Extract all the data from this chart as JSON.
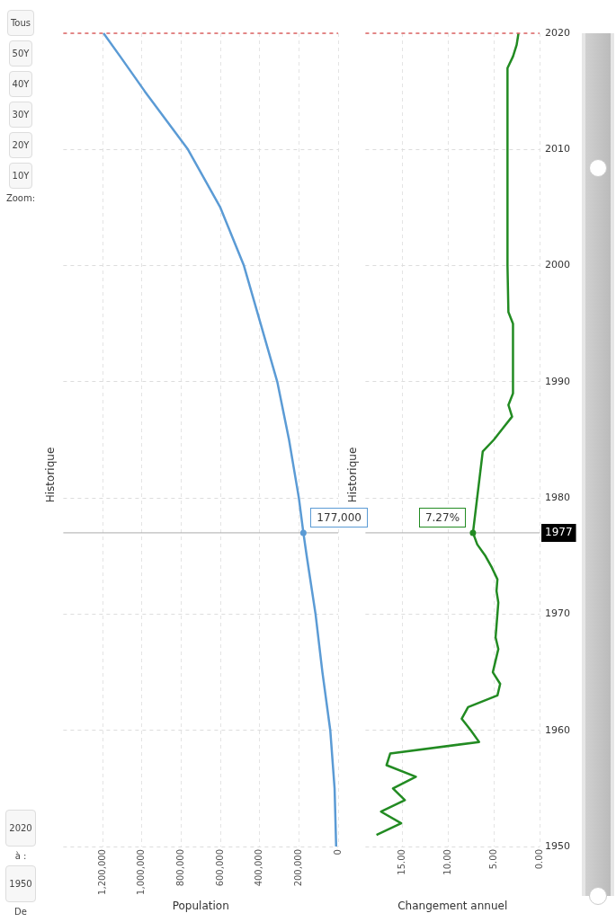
{
  "chart_data": [
    {
      "type": "line",
      "orientation": "horizontal",
      "title": "Historique",
      "xlabel": "Population",
      "x": [
        1950,
        1955,
        1960,
        1965,
        1970,
        1975,
        1977,
        1980,
        1983,
        1985,
        1990,
        1995,
        2000,
        2005,
        2010,
        2015,
        2018,
        2020
      ],
      "values": [
        10000,
        18000,
        40000,
        80000,
        115000,
        160000,
        177000,
        200000,
        230000,
        250000,
        310000,
        395000,
        480000,
        600000,
        765000,
        985000,
        1110000,
        1195000
      ],
      "color": "#5b9bd5",
      "ylim": [
        1950,
        2020
      ],
      "yticks": [
        1950,
        1960,
        1970,
        1980,
        1990,
        2000,
        2010,
        2020
      ],
      "xlim": [
        1400000,
        0
      ],
      "xticks": [
        0,
        {
          "value": 200000,
          "label": "200,000"
        },
        {
          "value": 400000,
          "label": "400,000"
        },
        {
          "value": 600000,
          "label": "600,000"
        },
        {
          "value": 800000,
          "label": "800,000"
        },
        {
          "value": 1000000,
          "label": "1,000,000"
        },
        {
          "value": 1200000,
          "label": "1,200,000"
        }
      ],
      "grid": true,
      "tick_labels": "x",
      "ref_lines": [
        {
          "axis": "y",
          "value": 1977,
          "color": "#aaaaaa"
        },
        {
          "axis": "y",
          "value": 2020,
          "color": "#e06666",
          "line_style": "dashed"
        }
      ],
      "annotations": [
        "De",
        "1950",
        "à :",
        "2020",
        "Zoom:",
        "10Y",
        "20Y",
        "30Y",
        "40Y",
        "50Y",
        "Tous",
        {
          "text": "177,000",
          "x": 177000,
          "y": 1977
        }
      ]
    },
    {
      "type": "line",
      "orientation": "horizontal",
      "title": "Historique",
      "xlabel": "Changement annuel",
      "x": [
        1951,
        1952,
        1953,
        1954,
        1955,
        1956,
        1957,
        1958,
        1959,
        1960,
        1961,
        1962,
        1963,
        1964,
        1965,
        1966,
        1967,
        1968,
        1969,
        1970,
        1971,
        1972,
        1973,
        1974,
        1975,
        1976,
        1977,
        1984,
        1985,
        1986,
        1987,
        1988,
        1989,
        1990,
        1995,
        1996,
        2000,
        2005,
        2010,
        2015,
        2017,
        2018,
        2019,
        2020
      ],
      "values": [
        17.8,
        15.1,
        17.3,
        14.7,
        16.0,
        13.5,
        16.7,
        16.3,
        6.6,
        7.5,
        8.5,
        7.8,
        4.6,
        4.3,
        5.1,
        4.8,
        4.5,
        4.8,
        4.7,
        4.6,
        4.5,
        4.7,
        4.6,
        5.2,
        5.9,
        6.8,
        7.27,
        6.2,
        5.0,
        4.0,
        3.0,
        3.4,
        2.9,
        2.9,
        2.9,
        3.4,
        3.5,
        3.5,
        3.5,
        3.5,
        3.5,
        2.9,
        2.5,
        2.3
      ],
      "color": "#228b22",
      "ylim": [
        1950,
        2020
      ],
      "yticks": [
        1950,
        1960,
        1970,
        1980,
        1990,
        2000,
        2010,
        2020
      ],
      "xlim": [
        19,
        0
      ],
      "xticks": [
        {
          "value": 0,
          "label": "0.00"
        },
        {
          "value": 5,
          "label": "5.00"
        },
        {
          "value": 10,
          "label": "10.00"
        },
        {
          "value": 15,
          "label": "15.00"
        }
      ],
      "grid": true,
      "ref_lines": [
        {
          "axis": "y",
          "value": 1977,
          "label": "1977",
          "color": "#aaaaaa"
        },
        {
          "axis": "y",
          "value": 2020,
          "color": "#e06666",
          "line_style": "dashed"
        }
      ],
      "annotations": [
        {
          "text": "7.27%",
          "x": 7.27,
          "y": 1977
        }
      ]
    }
  ]
}
